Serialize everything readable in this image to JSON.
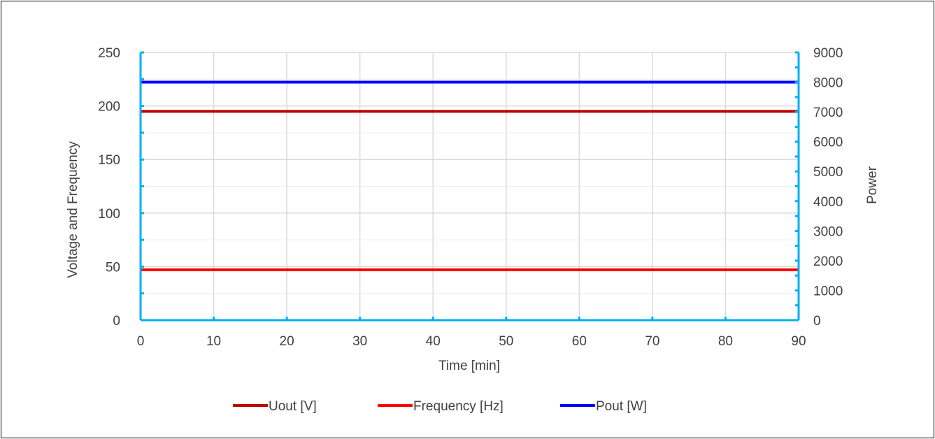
{
  "chart_data": {
    "type": "line",
    "x": [
      0,
      90
    ],
    "xlabel": "Time [min]",
    "ylabel": "Voltage and Frequency",
    "y2label": "Power",
    "xlim": [
      0,
      90
    ],
    "ylim": [
      0,
      250
    ],
    "y2lim": [
      0,
      9000
    ],
    "x_ticks": [
      "0",
      "10",
      "20",
      "30",
      "40",
      "50",
      "60",
      "70",
      "80",
      "90"
    ],
    "y_ticks": [
      "0",
      "50",
      "100",
      "150",
      "200",
      "250"
    ],
    "y2_ticks": [
      "0",
      "1000",
      "2000",
      "3000",
      "4000",
      "5000",
      "6000",
      "7000",
      "8000",
      "9000"
    ],
    "grid": true,
    "legend_position": "bottom",
    "series": [
      {
        "name": "Uout [V]",
        "axis": "left",
        "values": [
          195,
          195
        ],
        "color": "#C00000"
      },
      {
        "name": "Frequency [Hz]",
        "axis": "left",
        "values": [
          47,
          47
        ],
        "color": "#FF0000"
      },
      {
        "name": "Pout [W]",
        "axis": "right",
        "values": [
          8000,
          8000
        ],
        "color": "#0000FF"
      }
    ],
    "axis_color": "#00B0F0",
    "grid_color": "#D9D9D9"
  }
}
